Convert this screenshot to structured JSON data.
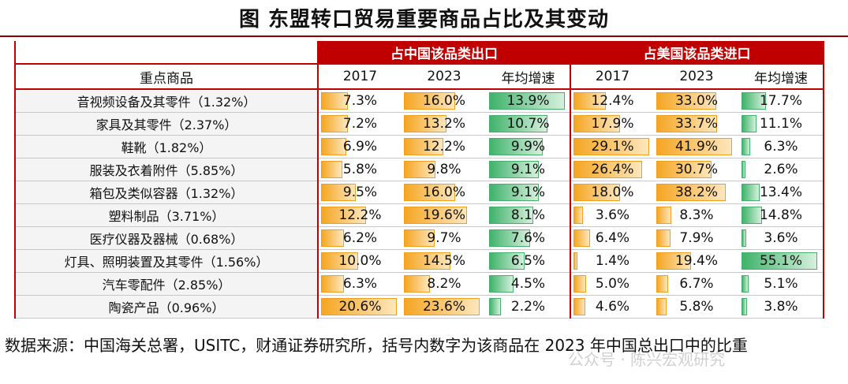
{
  "title": "图  东盟转口贸易重要商品占比及其变动",
  "table": {
    "group_headers": [
      "占中国该品类出口",
      "占美国该品类进口"
    ],
    "columns": [
      "重点商品",
      "2017",
      "2023",
      "年均增速",
      "2017",
      "2023",
      "年均增速"
    ],
    "rows": [
      [
        "音视频设备及其零件（1.32%）",
        "7.3%",
        "16.0%",
        "13.9%",
        "12.4%",
        "33.0%",
        "17.7%"
      ],
      [
        "家具及其零件（2.37%）",
        "7.2%",
        "13.2%",
        "10.7%",
        "17.9%",
        "33.7%",
        "11.1%"
      ],
      [
        "鞋靴（1.82%）",
        "6.9%",
        "12.2%",
        "9.9%",
        "29.1%",
        "41.9%",
        "6.3%"
      ],
      [
        "服装及衣着附件（5.85%）",
        "5.8%",
        "9.8%",
        "9.1%",
        "26.4%",
        "30.7%",
        "2.6%"
      ],
      [
        "箱包及类似容器（1.32%）",
        "9.5%",
        "16.0%",
        "9.1%",
        "18.0%",
        "38.2%",
        "13.4%"
      ],
      [
        "塑料制品（3.71%）",
        "12.2%",
        "19.6%",
        "8.1%",
        "3.6%",
        "8.3%",
        "14.8%"
      ],
      [
        "医疗仪器及器械（0.68%）",
        "6.2%",
        "9.7%",
        "7.6%",
        "6.4%",
        "7.9%",
        "3.6%"
      ],
      [
        "灯具、照明装置及其零件（1.56%）",
        "10.0%",
        "14.5%",
        "6.5%",
        "1.4%",
        "19.4%",
        "55.1%"
      ],
      [
        "汽车零配件（2.85%）",
        "6.3%",
        "8.2%",
        "4.5%",
        "5.0%",
        "6.7%",
        "5.1%"
      ],
      [
        "陶瓷产品（0.96%）",
        "20.6%",
        "23.6%",
        "2.2%",
        "4.6%",
        "5.8%",
        "3.8%"
      ]
    ]
  },
  "footer": {
    "source": "数据来源：中国海关总署，USITC，财通证券研究所，括号内数字为该商品在 2023 年中国总出口中的比重",
    "watermark": "公众号 · 陈兴宏观研究"
  }
}
